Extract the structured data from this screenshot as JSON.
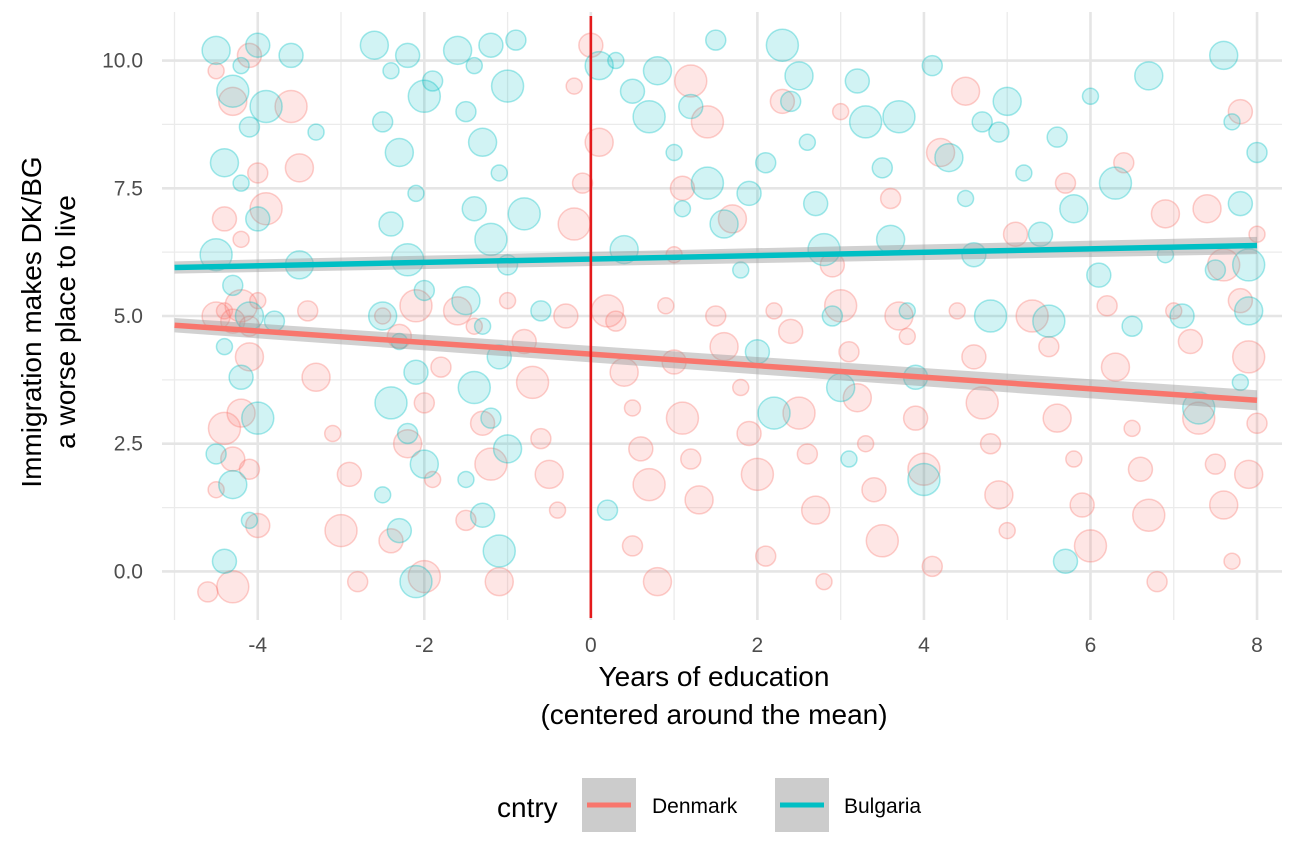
{
  "chart_data": {
    "type": "scatter",
    "xlabel": [
      "Years of education",
      "(centered around the mean)"
    ],
    "ylabel": [
      "Immigration makes DK/BG",
      "a worse place to live"
    ],
    "xlim": [
      -5.15,
      8.3
    ],
    "ylim": [
      -0.95,
      10.95
    ],
    "x_ticks": [
      -4,
      -2,
      0,
      2,
      4,
      6,
      8
    ],
    "x_tick_labels": [
      "-4",
      "-2",
      "0",
      "2",
      "4",
      "6",
      "8"
    ],
    "y_ticks": [
      0,
      2.5,
      5,
      7.5,
      10
    ],
    "y_tick_labels": [
      "0.0",
      "2.5",
      "5.0",
      "7.5",
      "10.0"
    ],
    "grid": true,
    "vline": {
      "x": 0,
      "color": "#e41a1c"
    },
    "legend": {
      "title": "cntry",
      "position": "bottom"
    },
    "series": [
      {
        "name": "Denmark",
        "color": "#f8766d",
        "fit": {
          "x": [
            -5,
            8
          ],
          "y": [
            4.82,
            3.35
          ],
          "se": 0.14
        },
        "points": [
          [
            -4.4,
            5.1
          ],
          [
            -4.3,
            4.9
          ],
          [
            -4.2,
            5.2
          ],
          [
            -4.1,
            4.8
          ],
          [
            -4.5,
            5.0
          ],
          [
            -4.0,
            5.3
          ],
          [
            -4.3,
            2.2
          ],
          [
            -4.4,
            2.8
          ],
          [
            -4.1,
            2.0
          ],
          [
            -4.2,
            3.1
          ],
          [
            -4.5,
            1.6
          ],
          [
            -4.0,
            0.9
          ],
          [
            -4.3,
            -0.3
          ],
          [
            -4.6,
            -0.4
          ],
          [
            -4.1,
            4.2
          ],
          [
            -4.2,
            6.5
          ],
          [
            -4.4,
            6.9
          ],
          [
            -3.9,
            7.1
          ],
          [
            -4.0,
            7.8
          ],
          [
            -4.3,
            9.2
          ],
          [
            -4.5,
            9.8
          ],
          [
            -4.1,
            10.1
          ],
          [
            -3.6,
            9.1
          ],
          [
            -3.4,
            5.1
          ],
          [
            -3.3,
            3.8
          ],
          [
            -3.1,
            2.7
          ],
          [
            -2.9,
            1.9
          ],
          [
            -3.0,
            0.8
          ],
          [
            -2.8,
            -0.2
          ],
          [
            -3.5,
            7.9
          ],
          [
            -2.5,
            5.0
          ],
          [
            -2.3,
            4.6
          ],
          [
            -2.1,
            5.2
          ],
          [
            -2.0,
            3.3
          ],
          [
            -2.2,
            2.5
          ],
          [
            -1.9,
            1.8
          ],
          [
            -2.4,
            0.6
          ],
          [
            -2.0,
            -0.1
          ],
          [
            -1.8,
            4.0
          ],
          [
            -1.6,
            5.1
          ],
          [
            -1.4,
            4.8
          ],
          [
            -1.3,
            2.9
          ],
          [
            -1.2,
            2.1
          ],
          [
            -1.5,
            1.0
          ],
          [
            -1.1,
            -0.2
          ],
          [
            -1.0,
            5.3
          ],
          [
            -0.8,
            4.5
          ],
          [
            -0.7,
            3.7
          ],
          [
            -0.6,
            2.6
          ],
          [
            -0.5,
            1.9
          ],
          [
            -0.4,
            1.2
          ],
          [
            -0.3,
            5.0
          ],
          [
            -0.2,
            6.8
          ],
          [
            -0.1,
            7.6
          ],
          [
            0.1,
            8.4
          ],
          [
            -0.2,
            9.5
          ],
          [
            0.0,
            10.3
          ],
          [
            0.2,
            5.1
          ],
          [
            0.3,
            4.9
          ],
          [
            0.4,
            3.9
          ],
          [
            0.5,
            3.2
          ],
          [
            0.6,
            2.4
          ],
          [
            0.7,
            1.7
          ],
          [
            0.5,
            0.5
          ],
          [
            0.8,
            -0.2
          ],
          [
            0.9,
            5.2
          ],
          [
            1.0,
            4.1
          ],
          [
            1.1,
            3.0
          ],
          [
            1.2,
            2.2
          ],
          [
            1.3,
            1.4
          ],
          [
            1.0,
            6.2
          ],
          [
            1.1,
            7.5
          ],
          [
            1.4,
            8.8
          ],
          [
            1.5,
            5.0
          ],
          [
            1.6,
            4.4
          ],
          [
            1.8,
            3.6
          ],
          [
            1.9,
            2.7
          ],
          [
            2.0,
            1.9
          ],
          [
            2.1,
            0.3
          ],
          [
            1.7,
            6.9
          ],
          [
            2.2,
            5.1
          ],
          [
            2.4,
            4.7
          ],
          [
            2.5,
            3.1
          ],
          [
            2.6,
            2.3
          ],
          [
            2.7,
            1.2
          ],
          [
            2.8,
            -0.2
          ],
          [
            2.9,
            6.0
          ],
          [
            3.0,
            5.2
          ],
          [
            3.1,
            4.3
          ],
          [
            3.2,
            3.4
          ],
          [
            3.3,
            2.5
          ],
          [
            3.4,
            1.6
          ],
          [
            3.5,
            0.6
          ],
          [
            3.6,
            7.3
          ],
          [
            3.7,
            5.0
          ],
          [
            3.8,
            4.6
          ],
          [
            3.9,
            3.0
          ],
          [
            4.0,
            2.0
          ],
          [
            4.1,
            0.1
          ],
          [
            4.2,
            8.2
          ],
          [
            4.4,
            5.1
          ],
          [
            4.6,
            4.2
          ],
          [
            4.7,
            3.3
          ],
          [
            4.8,
            2.5
          ],
          [
            4.9,
            1.5
          ],
          [
            5.0,
            0.8
          ],
          [
            5.1,
            6.6
          ],
          [
            5.3,
            5.0
          ],
          [
            5.5,
            4.4
          ],
          [
            5.6,
            3.0
          ],
          [
            5.8,
            2.2
          ],
          [
            5.9,
            1.3
          ],
          [
            6.0,
            0.5
          ],
          [
            6.2,
            5.2
          ],
          [
            6.3,
            4.0
          ],
          [
            6.5,
            2.8
          ],
          [
            6.6,
            2.0
          ],
          [
            6.7,
            1.1
          ],
          [
            6.8,
            -0.2
          ],
          [
            6.9,
            7.0
          ],
          [
            7.0,
            5.1
          ],
          [
            7.2,
            4.5
          ],
          [
            7.3,
            3.0
          ],
          [
            7.5,
            2.1
          ],
          [
            7.6,
            1.3
          ],
          [
            7.7,
            0.2
          ],
          [
            7.8,
            5.3
          ],
          [
            7.9,
            4.2
          ],
          [
            8.0,
            2.9
          ],
          [
            7.9,
            1.9
          ],
          [
            8.0,
            6.6
          ],
          [
            7.8,
            9.0
          ],
          [
            7.6,
            6.0
          ],
          [
            5.7,
            7.6
          ],
          [
            4.5,
            9.4
          ],
          [
            3.0,
            9.0
          ],
          [
            2.3,
            9.2
          ],
          [
            1.2,
            9.6
          ],
          [
            6.4,
            8.0
          ],
          [
            7.4,
            7.1
          ]
        ]
      },
      {
        "name": "Bulgaria",
        "color": "#00bfc4",
        "fit": {
          "x": [
            -5,
            8
          ],
          "y": [
            5.95,
            6.38
          ],
          "se": 0.12
        },
        "points": [
          [
            -4.5,
            10.2
          ],
          [
            -4.2,
            9.9
          ],
          [
            -4.0,
            10.3
          ],
          [
            -4.3,
            9.4
          ],
          [
            -4.1,
            8.7
          ],
          [
            -4.4,
            8.0
          ],
          [
            -4.2,
            7.6
          ],
          [
            -4.0,
            6.9
          ],
          [
            -4.5,
            6.2
          ],
          [
            -4.3,
            5.6
          ],
          [
            -4.1,
            5.0
          ],
          [
            -4.4,
            4.4
          ],
          [
            -4.2,
            3.8
          ],
          [
            -4.0,
            3.0
          ],
          [
            -4.5,
            2.3
          ],
          [
            -4.3,
            1.7
          ],
          [
            -4.1,
            1.0
          ],
          [
            -4.4,
            0.2
          ],
          [
            -3.9,
            9.1
          ],
          [
            -3.8,
            4.9
          ],
          [
            -2.6,
            10.3
          ],
          [
            -2.4,
            9.8
          ],
          [
            -2.2,
            10.1
          ],
          [
            -2.0,
            9.3
          ],
          [
            -2.5,
            8.8
          ],
          [
            -2.3,
            8.2
          ],
          [
            -2.1,
            7.4
          ],
          [
            -2.4,
            6.8
          ],
          [
            -2.2,
            6.1
          ],
          [
            -2.0,
            5.5
          ],
          [
            -2.5,
            5.0
          ],
          [
            -2.3,
            4.5
          ],
          [
            -2.1,
            3.9
          ],
          [
            -2.4,
            3.3
          ],
          [
            -2.2,
            2.7
          ],
          [
            -2.0,
            2.1
          ],
          [
            -2.5,
            1.5
          ],
          [
            -2.3,
            0.8
          ],
          [
            -2.1,
            -0.2
          ],
          [
            -1.9,
            9.6
          ],
          [
            -1.6,
            10.2
          ],
          [
            -1.4,
            9.9
          ],
          [
            -1.2,
            10.3
          ],
          [
            -1.0,
            9.5
          ],
          [
            -1.5,
            9.0
          ],
          [
            -1.3,
            8.4
          ],
          [
            -1.1,
            7.8
          ],
          [
            -1.4,
            7.1
          ],
          [
            -1.2,
            6.5
          ],
          [
            -1.0,
            6.0
          ],
          [
            -1.5,
            5.3
          ],
          [
            -1.3,
            4.8
          ],
          [
            -1.1,
            4.2
          ],
          [
            -1.4,
            3.6
          ],
          [
            -1.2,
            3.0
          ],
          [
            -1.0,
            2.4
          ],
          [
            -1.5,
            1.8
          ],
          [
            -1.3,
            1.1
          ],
          [
            -1.1,
            0.4
          ],
          [
            -0.9,
            10.4
          ],
          [
            0.1,
            9.9
          ],
          [
            0.3,
            10.0
          ],
          [
            0.5,
            9.4
          ],
          [
            0.7,
            8.9
          ],
          [
            0.2,
            1.2
          ],
          [
            0.8,
            9.8
          ],
          [
            1.0,
            8.2
          ],
          [
            1.2,
            9.1
          ],
          [
            1.4,
            7.6
          ],
          [
            1.5,
            10.4
          ],
          [
            1.6,
            6.8
          ],
          [
            1.8,
            5.9
          ],
          [
            2.0,
            4.3
          ],
          [
            2.2,
            3.1
          ],
          [
            2.4,
            9.2
          ],
          [
            2.5,
            9.7
          ],
          [
            2.6,
            8.4
          ],
          [
            2.7,
            7.2
          ],
          [
            2.8,
            6.3
          ],
          [
            2.9,
            5.0
          ],
          [
            3.0,
            3.6
          ],
          [
            3.1,
            2.2
          ],
          [
            3.2,
            9.6
          ],
          [
            3.3,
            8.8
          ],
          [
            3.5,
            7.9
          ],
          [
            3.6,
            6.5
          ],
          [
            3.8,
            5.1
          ],
          [
            3.9,
            3.8
          ],
          [
            4.0,
            1.8
          ],
          [
            4.1,
            9.9
          ],
          [
            4.3,
            8.1
          ],
          [
            4.5,
            7.3
          ],
          [
            4.6,
            6.2
          ],
          [
            4.8,
            5.0
          ],
          [
            4.9,
            8.6
          ],
          [
            5.0,
            9.2
          ],
          [
            5.2,
            7.8
          ],
          [
            5.4,
            6.6
          ],
          [
            5.5,
            4.9
          ],
          [
            5.6,
            8.5
          ],
          [
            5.8,
            7.1
          ],
          [
            6.0,
            9.3
          ],
          [
            6.1,
            5.8
          ],
          [
            6.3,
            7.6
          ],
          [
            6.5,
            4.8
          ],
          [
            6.7,
            9.7
          ],
          [
            6.9,
            6.2
          ],
          [
            7.1,
            5.0
          ],
          [
            7.3,
            3.2
          ],
          [
            7.5,
            5.9
          ],
          [
            7.6,
            10.1
          ],
          [
            7.7,
            8.8
          ],
          [
            7.8,
            7.2
          ],
          [
            7.9,
            6.0
          ],
          [
            8.0,
            8.2
          ],
          [
            7.9,
            5.1
          ],
          [
            7.8,
            3.7
          ],
          [
            5.7,
            0.2
          ],
          [
            3.7,
            8.9
          ],
          [
            2.1,
            8.0
          ],
          [
            -3.5,
            6.0
          ],
          [
            -3.3,
            8.6
          ],
          [
            -3.6,
            10.1
          ],
          [
            -0.8,
            7.0
          ],
          [
            -0.6,
            5.1
          ],
          [
            0.4,
            6.3
          ],
          [
            1.1,
            7.1
          ],
          [
            1.9,
            7.4
          ],
          [
            2.3,
            10.3
          ],
          [
            4.7,
            8.8
          ]
        ]
      }
    ]
  }
}
